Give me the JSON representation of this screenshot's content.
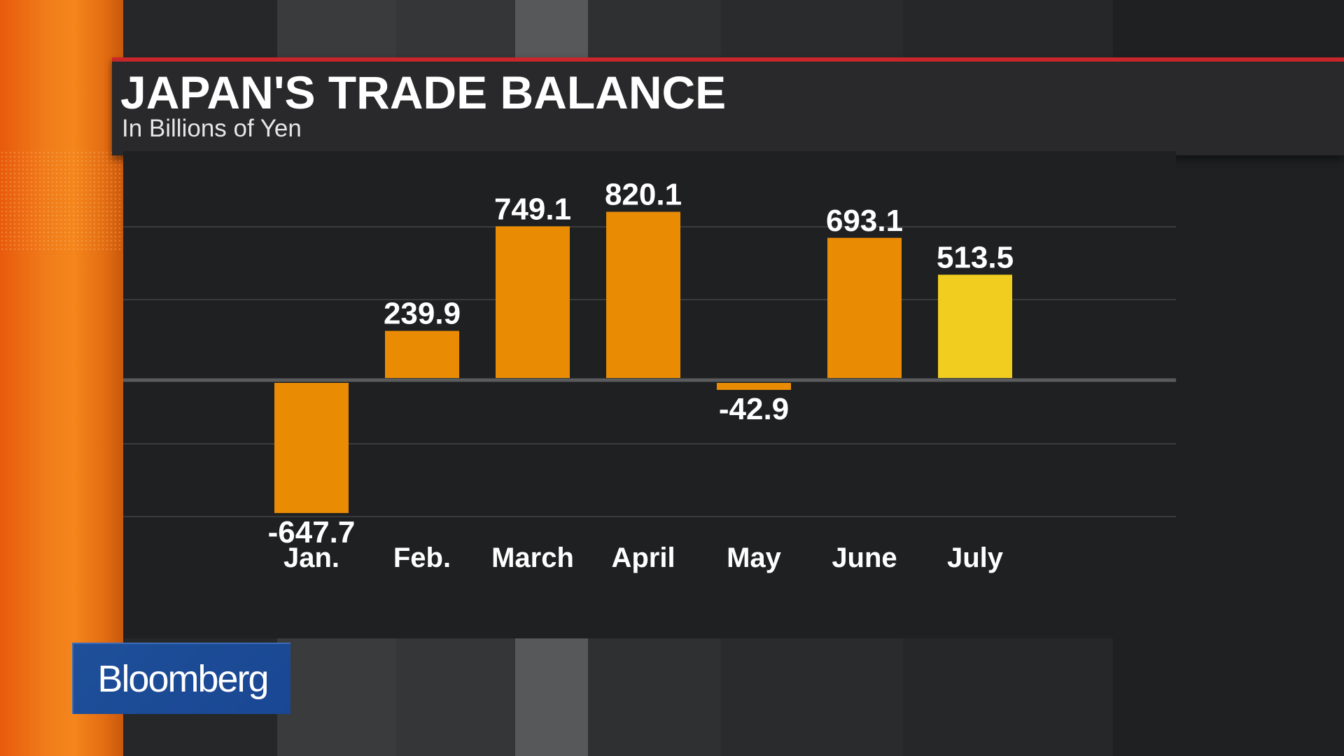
{
  "header": {
    "title": "JAPAN'S TRADE BALANCE",
    "subtitle": "In Billions of Yen"
  },
  "branding": {
    "logo_text": "Bloomberg"
  },
  "colors": {
    "bar": "#e98c04",
    "highlight_bar": "#f0cd1f",
    "title_rule": "#c8262a",
    "brand_blue": "#1e4f99"
  },
  "chart_data": {
    "type": "bar",
    "title": "JAPAN'S TRADE BALANCE",
    "subtitle": "In Billions of Yen",
    "categories": [
      "Jan.",
      "Feb.",
      "March",
      "April",
      "May",
      "June",
      "July"
    ],
    "values": [
      -647.7,
      239.9,
      749.1,
      820.1,
      -42.9,
      693.1,
      513.5
    ],
    "value_labels": [
      "-647.7",
      "239.9",
      "749.1",
      "820.1",
      "-42.9",
      "693.1",
      "513.5"
    ],
    "highlight_category": "July",
    "xlabel": "",
    "ylabel": "",
    "ylim": [
      -700,
      900
    ],
    "grid": true,
    "legend": "none"
  }
}
